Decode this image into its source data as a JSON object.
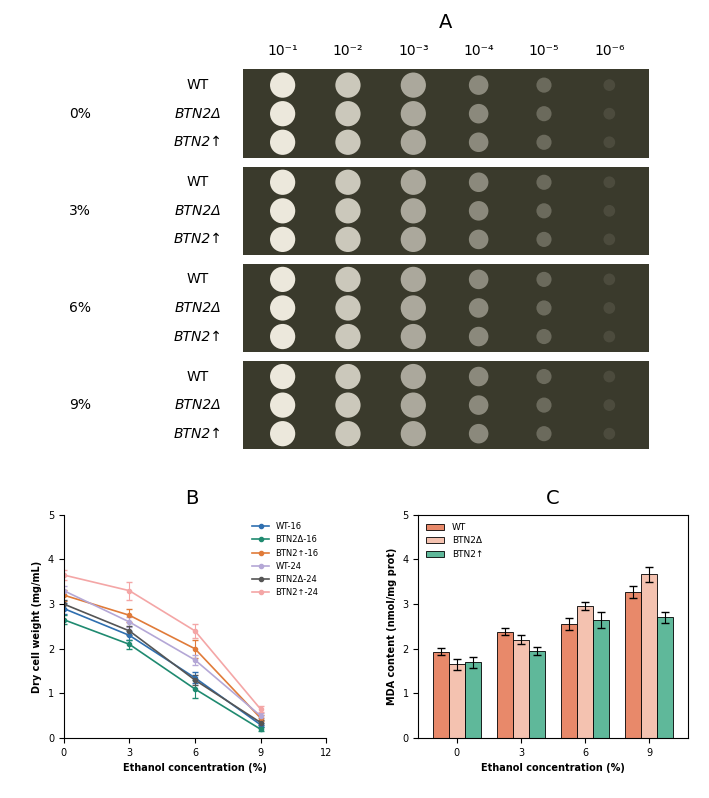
{
  "chart_data": [
    {
      "type": "spot_assay",
      "label": "A",
      "dilutions": [
        "10⁻¹",
        "10⁻²",
        "10⁻³",
        "10⁻⁴",
        "10⁻⁵",
        "10⁻⁶"
      ],
      "conditions": [
        "0%",
        "3%",
        "6%",
        "9%"
      ],
      "strains": [
        "WT",
        "BTN2Δ",
        "BTN2↑"
      ]
    },
    {
      "type": "line",
      "label": "B",
      "x_label": "Ethanol concentration (%)",
      "y_label": "Dry cell weight (mg/mL)",
      "x": [
        0,
        3,
        6,
        9
      ],
      "xlim": [
        0,
        12
      ],
      "xticks": [
        0,
        3,
        6,
        9,
        12
      ],
      "ylim": [
        0,
        5
      ],
      "yticks": [
        0,
        1,
        2,
        3,
        4,
        5
      ],
      "legend": "upper right",
      "marker": "o",
      "series": [
        {
          "name": "WT-16",
          "color": "#2f6fb0",
          "values": [
            2.9,
            2.3,
            1.35,
            0.3
          ],
          "errors": [
            0.12,
            0.1,
            0.12,
            0.05
          ]
        },
        {
          "name": "BTN2Δ-16",
          "color": "#1f8a70",
          "values": [
            2.65,
            2.1,
            1.1,
            0.2
          ],
          "errors": [
            0.1,
            0.1,
            0.2,
            0.05
          ]
        },
        {
          "name": "BTN2↑-16",
          "color": "#e07b39",
          "values": [
            3.2,
            2.75,
            2.0,
            0.45
          ],
          "errors": [
            0.12,
            0.15,
            0.2,
            0.06
          ]
        },
        {
          "name": "WT-24",
          "color": "#b4a7d6",
          "values": [
            3.3,
            2.6,
            1.75,
            0.5
          ],
          "errors": [
            0.1,
            0.12,
            0.12,
            0.06
          ]
        },
        {
          "name": "BTN2Δ-24",
          "color": "#555555",
          "values": [
            3.0,
            2.4,
            1.3,
            0.35
          ],
          "errors": [
            0.1,
            0.1,
            0.12,
            0.05
          ]
        },
        {
          "name": "BTN2↑-24",
          "color": "#f4a6a6",
          "values": [
            3.65,
            3.3,
            2.4,
            0.65
          ],
          "errors": [
            0.12,
            0.2,
            0.15,
            0.06
          ]
        }
      ]
    },
    {
      "type": "bar",
      "label": "C",
      "x_label": "Ethanol concentration (%)",
      "y_label": "MDA content (nmol/mg prot)",
      "categories": [
        "0",
        "3",
        "6",
        "9"
      ],
      "ylim": [
        0,
        5
      ],
      "yticks": [
        0,
        1,
        2,
        3,
        4,
        5
      ],
      "legend": "upper left",
      "series": [
        {
          "name": "WT",
          "color": "#e8896a",
          "values": [
            1.93,
            2.38,
            2.55,
            3.27
          ],
          "errors": [
            0.08,
            0.08,
            0.13,
            0.13
          ]
        },
        {
          "name": "BTN2Δ",
          "color": "#f4c2b0",
          "values": [
            1.65,
            2.2,
            2.95,
            3.67
          ],
          "errors": [
            0.13,
            0.1,
            0.09,
            0.17
          ]
        },
        {
          "name": "BTN2↑",
          "color": "#5fb89a",
          "values": [
            1.7,
            1.95,
            2.65,
            2.7
          ],
          "errors": [
            0.12,
            0.1,
            0.18,
            0.13
          ]
        }
      ]
    }
  ]
}
